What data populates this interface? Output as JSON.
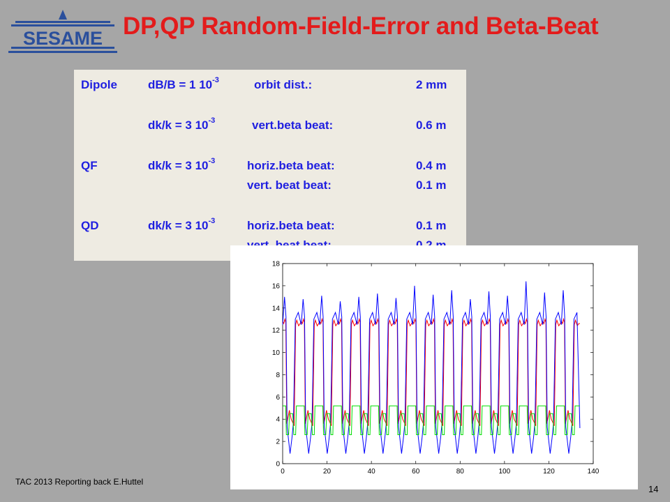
{
  "logo": {
    "text": "SESAME"
  },
  "title": "DP,QP Random-Field-Error and Beta-Beat",
  "table": {
    "rows": [
      {
        "element": "Dipole",
        "error": "dB/B = 1  10",
        "exp": "-3",
        "quantity": "orbit dist.:",
        "value": "2 mm"
      },
      {
        "element": "",
        "error": "dk/k  = 3 10",
        "exp": "-3",
        "quantity": "vert.beta beat:",
        "value": "0.6 m"
      },
      {
        "element": "QF",
        "error": "dk/k  = 3 10",
        "exp": "-3",
        "quantity": "horiz.beta beat:",
        "value": "0.4 m"
      },
      {
        "element": "",
        "error": "",
        "exp": "",
        "quantity": "vert. beat beat:",
        "value": "0.1 m"
      },
      {
        "element": "QD",
        "error": "dk/k  = 3 10",
        "exp": "-3",
        "quantity": "horiz.beta beat:",
        "value": "0.1 m"
      },
      {
        "element": "",
        "error": "",
        "exp": "",
        "quantity": "vert. beat beat:",
        "value": "0.2 m"
      }
    ]
  },
  "chart_data": {
    "type": "line",
    "title": "",
    "xlabel": "",
    "ylabel": "",
    "xlim": [
      0,
      140
    ],
    "ylim": [
      0,
      18
    ],
    "xticks": [
      0,
      20,
      40,
      60,
      80,
      100,
      120,
      140
    ],
    "yticks": [
      0,
      2,
      4,
      6,
      8,
      10,
      12,
      14,
      16,
      18
    ],
    "grid": false,
    "series": [
      {
        "color": "#ff0000",
        "pattern": "red",
        "x_start": 0,
        "x_end": 134,
        "period_count": 16
      },
      {
        "color": "#0000ff",
        "pattern": "blue",
        "x_start": 0,
        "x_end": 134,
        "period_count": 16,
        "peaks": [
          15.0,
          14.8,
          15.1,
          14.6,
          15.0,
          15.3,
          14.9,
          16.0,
          15.2,
          15.6,
          14.8,
          15.5,
          15.1,
          16.4,
          15.4,
          15.6
        ]
      },
      {
        "color": "#00dd00",
        "pattern": "green",
        "x_start": 0,
        "x_end": 134,
        "period_count": 16
      }
    ]
  },
  "footer": {
    "text": "TAC 2013 Reporting back E.Huttel",
    "page": "14"
  },
  "colors": {
    "background": "#a6a6a6",
    "title": "#e31b1b",
    "table_text": "#1f1fe0",
    "table_bg": "#eeebe2",
    "logo": "#2a4f9c"
  }
}
